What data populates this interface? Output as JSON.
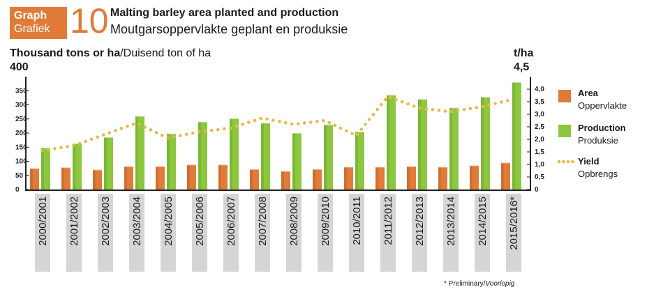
{
  "header": {
    "badge_line1": "Graph",
    "badge_line2": "Grafiek",
    "number": "10",
    "title": "Malting barley area planted and production",
    "subtitle": "Moutgarsoppervlakte geplant en produksie"
  },
  "axes": {
    "left_label_bold": "Thousand tons or ha",
    "left_label_rest": "/Duisend ton of ha",
    "left_max_label": "400",
    "right_label": "t/ha",
    "right_max_label": "4,5"
  },
  "footnote": {
    "prefix": "* Preliminary/",
    "italic": "Voorlopig"
  },
  "legend": [
    {
      "label": "Area",
      "sublabel": "Oppervlakte",
      "color": "#e07b3a",
      "kind": "bar"
    },
    {
      "label": "Production",
      "sublabel": "Produksie",
      "color": "#8dc63f",
      "kind": "bar"
    },
    {
      "label": "Yield",
      "sublabel": "Opbrengs",
      "color": "#e8b84a",
      "kind": "dots"
    }
  ],
  "chart_data": {
    "type": "bar",
    "categories": [
      "2000/2001",
      "2001/2002",
      "2002/2003",
      "2003/2004",
      "2004/2005",
      "2005/2006",
      "2006/2007",
      "2007/2008",
      "2008/2009",
      "2009/2010",
      "2010/2011",
      "2011/2012",
      "2012/2013",
      "2013/2014",
      "2014/2015",
      "2015/2016*"
    ],
    "series": [
      {
        "name": "Area",
        "axis": "left",
        "type": "bar",
        "color": "#e07b3a",
        "values": [
          75,
          78,
          70,
          82,
          82,
          88,
          88,
          72,
          65,
          72,
          80,
          80,
          82,
          80,
          85,
          95
        ]
      },
      {
        "name": "Production",
        "axis": "left",
        "type": "bar",
        "color": "#8dc63f",
        "values": [
          148,
          163,
          185,
          260,
          198,
          240,
          252,
          236,
          200,
          230,
          205,
          335,
          320,
          290,
          328,
          380
        ]
      },
      {
        "name": "Yield",
        "axis": "right",
        "type": "line",
        "color": "#e8b84a",
        "values": [
          1.55,
          1.75,
          2.2,
          2.65,
          2.05,
          2.3,
          2.45,
          2.85,
          2.6,
          2.75,
          2.15,
          3.7,
          3.25,
          3.1,
          3.3,
          3.6
        ]
      }
    ],
    "y_left": {
      "ylim": [
        0,
        400
      ],
      "ticks": [
        0,
        50,
        100,
        150,
        200,
        250,
        300,
        350
      ]
    },
    "y_right": {
      "ylim": [
        0,
        4.5
      ],
      "ticks": [
        "0",
        "0,5",
        "1,0",
        "1,5",
        "2,0",
        "2,5",
        "3,0",
        "3,5",
        "4,0"
      ]
    },
    "legend_position": "right"
  }
}
